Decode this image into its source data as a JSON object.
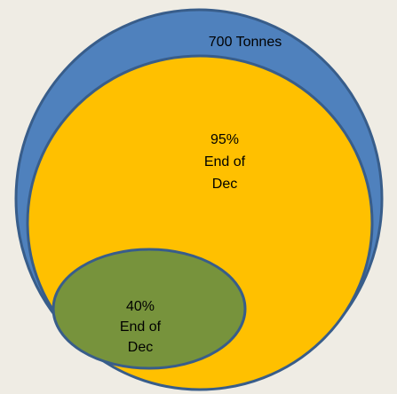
{
  "nodes": [
    {
      "label": [
        "700 Tonnes"
      ]
    },
    {
      "label": [
        "95%",
        "End of",
        "Dec"
      ]
    },
    {
      "label": [
        "40%",
        "End of",
        "Dec"
      ]
    }
  ]
}
